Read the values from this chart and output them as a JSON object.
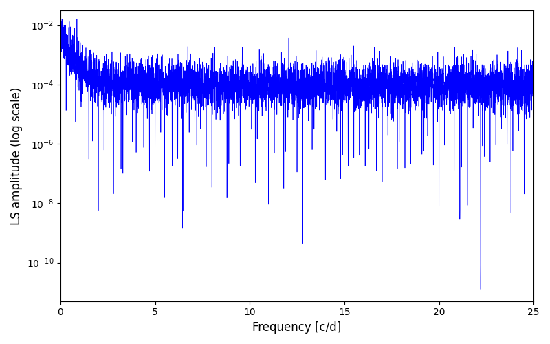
{
  "line_color": "#0000FF",
  "xlabel": "Frequency [c/d]",
  "ylabel": "LS amplitude (log scale)",
  "xlim": [
    0,
    25
  ],
  "ylim_log": [
    -11.3,
    -1.5
  ],
  "xticks": [
    0,
    5,
    10,
    15,
    20,
    25
  ],
  "seed": 42,
  "n_points": 6000,
  "figsize": [
    8.0,
    5.0
  ],
  "dpi": 100,
  "line_width": 0.5,
  "background_color": "#ffffff"
}
